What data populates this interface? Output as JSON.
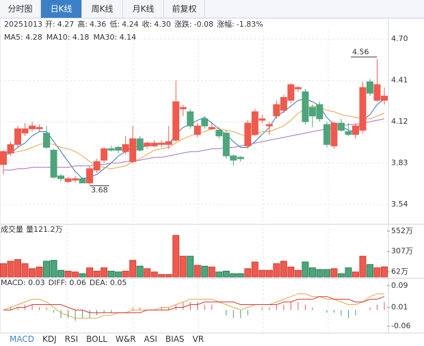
{
  "tabs": [
    {
      "label": "分时图",
      "active": false
    },
    {
      "label": "日K线",
      "active": true
    },
    {
      "label": "周K线",
      "active": false
    },
    {
      "label": "月K线",
      "active": false
    },
    {
      "label": "前复权",
      "active": false
    }
  ],
  "quote": {
    "date": "20251013",
    "value_color": "#2e9a5a",
    "fields": [
      {
        "label": "开:",
        "value": "4.27"
      },
      {
        "label": "高:",
        "value": "4.36"
      },
      {
        "label": "低:",
        "value": "4.24"
      },
      {
        "label": "收:",
        "value": "4.30"
      },
      {
        "label": "涨跌:",
        "value": "-0.08"
      },
      {
        "label": "涨幅:",
        "value": "-1.83%"
      }
    ]
  },
  "chart_data": [
    {
      "type": "candlestick",
      "up_color": "#ef5a4e",
      "down_color": "#4ea57b",
      "grid": true,
      "ylim": [
        3.4,
        4.83
      ],
      "yticks": [
        {
          "value": 4.7,
          "label": "4.70"
        },
        4.41,
        4.12,
        3.83,
        3.54
      ],
      "open": [
        3.82,
        3.9,
        3.96,
        4.04,
        4.07,
        4.07,
        4.04,
        3.92,
        3.74,
        3.7,
        3.71,
        3.72,
        3.69,
        3.78,
        3.85,
        3.93,
        3.94,
        3.91,
        3.84,
        4.0,
        3.95,
        3.95,
        3.96,
        3.96,
        3.99,
        4.21,
        4.19,
        4.03,
        4.14,
        4.07,
        4.06,
        4.04,
        3.88,
        3.87,
        3.95,
        4.03,
        4.13,
        4.09,
        4.16,
        4.2,
        4.27,
        4.35,
        4.33,
        4.22,
        4.24,
        4.1,
        3.95,
        4.11,
        4.05,
        4.03,
        4.06,
        4.4,
        4.27,
        4.27
      ],
      "high": [
        3.92,
        3.98,
        4.09,
        4.11,
        4.12,
        4.1,
        4.09,
        3.93,
        3.75,
        3.73,
        3.74,
        3.73,
        3.81,
        3.86,
        3.94,
        3.95,
        3.95,
        4.02,
        4.09,
        4.02,
        3.98,
        3.99,
        3.99,
        4.09,
        4.41,
        4.24,
        4.21,
        4.11,
        4.16,
        4.12,
        4.08,
        4.06,
        3.89,
        3.88,
        4.13,
        4.21,
        4.17,
        4.12,
        4.27,
        4.31,
        4.39,
        4.37,
        4.35,
        4.24,
        4.26,
        4.12,
        4.12,
        4.14,
        4.11,
        4.11,
        4.4,
        4.42,
        4.56,
        4.36
      ],
      "low": [
        3.75,
        3.88,
        3.94,
        4.02,
        4.05,
        4.05,
        3.93,
        3.72,
        3.7,
        3.69,
        3.69,
        3.69,
        3.68,
        3.76,
        3.83,
        3.91,
        3.9,
        3.89,
        3.83,
        3.91,
        3.93,
        3.94,
        3.94,
        3.93,
        3.98,
        4.16,
        4.07,
        4.01,
        4.07,
        4.06,
        4.0,
        3.86,
        3.81,
        3.84,
        3.93,
        4.02,
        4.11,
        4.03,
        4.14,
        4.18,
        4.25,
        4.33,
        4.1,
        4.08,
        4.12,
        3.94,
        3.93,
        4.05,
        4.02,
        4.0,
        4.04,
        4.3,
        4.26,
        4.24
      ],
      "close": [
        3.91,
        3.96,
        4.07,
        4.07,
        4.09,
        4.08,
        3.94,
        3.73,
        3.72,
        3.72,
        3.72,
        3.69,
        3.79,
        3.84,
        3.93,
        3.92,
        3.92,
        3.96,
        4.0,
        3.92,
        3.97,
        3.97,
        3.97,
        3.98,
        4.26,
        4.22,
        4.09,
        4.09,
        4.09,
        4.08,
        4.02,
        3.88,
        3.85,
        3.86,
        4.11,
        4.19,
        4.14,
        4.1,
        4.24,
        4.29,
        4.38,
        4.36,
        4.12,
        4.16,
        4.14,
        3.96,
        4.11,
        4.06,
        4.03,
        4.09,
        4.36,
        4.32,
        4.38,
        4.3
      ],
      "series": [
        {
          "name": "MA5: 4.28",
          "color": "#2f6fb3",
          "values": [
            3.88,
            3.9,
            3.94,
            3.97,
            4.02,
            4.05,
            4.05,
            3.98,
            3.91,
            3.84,
            3.77,
            3.72,
            3.73,
            3.75,
            3.79,
            3.83,
            3.88,
            3.91,
            3.95,
            3.94,
            3.95,
            3.96,
            3.97,
            3.96,
            4.03,
            4.08,
            4.1,
            4.13,
            4.15,
            4.11,
            4.07,
            4.03,
            3.98,
            3.94,
            3.94,
            3.98,
            4.03,
            4.08,
            4.16,
            4.19,
            4.23,
            4.27,
            4.28,
            4.26,
            4.23,
            4.15,
            4.1,
            4.09,
            4.06,
            4.05,
            4.13,
            4.17,
            4.24,
            4.28
          ]
        },
        {
          "name": "MA10: 4.18",
          "color": "#e3a048",
          "values": [
            3.9,
            3.9,
            3.91,
            3.92,
            3.94,
            3.96,
            3.97,
            3.96,
            3.94,
            3.93,
            3.91,
            3.88,
            3.84,
            3.81,
            3.8,
            3.79,
            3.8,
            3.81,
            3.84,
            3.86,
            3.89,
            3.92,
            3.93,
            3.94,
            3.97,
            4.0,
            4.02,
            4.04,
            4.05,
            4.07,
            4.07,
            4.06,
            4.05,
            4.03,
            4.02,
            4.03,
            4.05,
            4.05,
            4.07,
            4.09,
            4.13,
            4.18,
            4.21,
            4.23,
            4.22,
            4.2,
            4.19,
            4.17,
            4.16,
            4.15,
            4.14,
            4.14,
            4.16,
            4.18
          ]
        },
        {
          "name": "MA30: 4.14",
          "color": "#a070bf",
          "values": [
            3.78,
            3.78,
            3.79,
            3.79,
            3.8,
            3.8,
            3.8,
            3.8,
            3.8,
            3.8,
            3.81,
            3.81,
            3.81,
            3.82,
            3.82,
            3.83,
            3.83,
            3.84,
            3.84,
            3.85,
            3.86,
            3.87,
            3.87,
            3.88,
            3.89,
            3.9,
            3.91,
            3.91,
            3.92,
            3.93,
            3.93,
            3.94,
            3.94,
            3.95,
            3.96,
            3.97,
            3.98,
            3.99,
            4.0,
            4.01,
            4.02,
            4.03,
            4.04,
            4.05,
            4.06,
            4.07,
            4.08,
            4.09,
            4.1,
            4.1,
            4.11,
            4.12,
            4.13,
            4.14
          ]
        }
      ]
    },
    {
      "type": "bar",
      "title": "成交量",
      "subtitle": "量121.2万",
      "ylim": [
        0,
        552
      ],
      "yticks": [
        {
          "value": 552,
          "label": "552万"
        },
        {
          "value": 307,
          "label": "307万"
        },
        {
          "value": 62,
          "label": "62万"
        }
      ],
      "values": [
        160,
        190,
        210,
        160,
        100,
        120,
        190,
        200,
        80,
        70,
        60,
        40,
        110,
        70,
        110,
        70,
        60,
        70,
        200,
        130,
        100,
        60,
        30,
        30,
        500,
        250,
        250,
        140,
        130,
        120,
        60,
        70,
        40,
        40,
        100,
        180,
        80,
        80,
        160,
        190,
        120,
        80,
        180,
        110,
        90,
        90,
        100,
        40,
        110,
        60,
        250,
        150,
        110,
        121.2
      ]
    },
    {
      "type": "macd",
      "up_color": "#e0554a",
      "down_color": "#3f9a68",
      "ylim": [
        -0.08,
        0.11
      ],
      "yticks": [
        0.09,
        0.01,
        -0.06
      ],
      "series": [
        {
          "name": "MACD: 0.03",
          "color": "#333333",
          "values": [
            0,
            0.01,
            0.01,
            0.02,
            0.02,
            0.01,
            0.01,
            -0.01,
            -0.03,
            -0.03,
            -0.04,
            -0.03,
            -0.03,
            -0.02,
            -0.01,
            -0.01,
            0,
            0,
            0.01,
            0.01,
            0,
            0,
            0.01,
            0.01,
            0.02,
            0.03,
            0.03,
            0.03,
            0.02,
            0.02,
            0,
            -0.02,
            -0.03,
            -0.03,
            -0.02,
            0,
            0.01,
            0.01,
            0.02,
            0.02,
            0.03,
            0.03,
            0.02,
            0.01,
            0,
            -0.01,
            -0.01,
            -0.02,
            -0.03,
            -0.02,
            0,
            0.01,
            0.02,
            0.03
          ]
        },
        {
          "name": "DIFF: 0.06",
          "color": "#e3a048",
          "values": [
            0,
            0.01,
            0.02,
            0.03,
            0.04,
            0.04,
            0.03,
            0.01,
            -0.01,
            -0.02,
            -0.03,
            -0.03,
            -0.03,
            -0.03,
            -0.02,
            -0.02,
            -0.01,
            -0.01,
            0,
            0,
            0,
            0,
            0.01,
            0.01,
            0.02,
            0.03,
            0.04,
            0.04,
            0.04,
            0.04,
            0.03,
            0.02,
            0.01,
            0,
            0.01,
            0.02,
            0.02,
            0.02,
            0.03,
            0.04,
            0.05,
            0.06,
            0.06,
            0.05,
            0.05,
            0.04,
            0.04,
            0.03,
            0.02,
            0.02,
            0.03,
            0.05,
            0.06,
            0.06
          ]
        },
        {
          "name": "DEA: 0.05",
          "color": "#d0342c",
          "values": [
            0,
            0,
            0.01,
            0.01,
            0.02,
            0.02,
            0.02,
            0.02,
            0.02,
            0.01,
            0,
            0,
            -0.01,
            -0.01,
            -0.01,
            -0.01,
            -0.01,
            -0.01,
            -0.01,
            -0.01,
            0,
            0,
            0,
            0,
            0.01,
            0.01,
            0.02,
            0.02,
            0.03,
            0.03,
            0.03,
            0.03,
            0.03,
            0.02,
            0.02,
            0.02,
            0.02,
            0.02,
            0.02,
            0.03,
            0.03,
            0.04,
            0.04,
            0.04,
            0.05,
            0.05,
            0.04,
            0.04,
            0.04,
            0.03,
            0.03,
            0.04,
            0.04,
            0.05
          ]
        }
      ]
    }
  ],
  "indicator_tabs": [
    {
      "label": "MACD",
      "active": true
    },
    {
      "label": "KDJ",
      "active": false
    },
    {
      "label": "RSI",
      "active": false
    },
    {
      "label": "BOLL",
      "active": false
    },
    {
      "label": "W&R",
      "active": false
    },
    {
      "label": "ASI",
      "active": false
    },
    {
      "label": "BIAS",
      "active": false
    },
    {
      "label": "VR",
      "active": false
    }
  ]
}
